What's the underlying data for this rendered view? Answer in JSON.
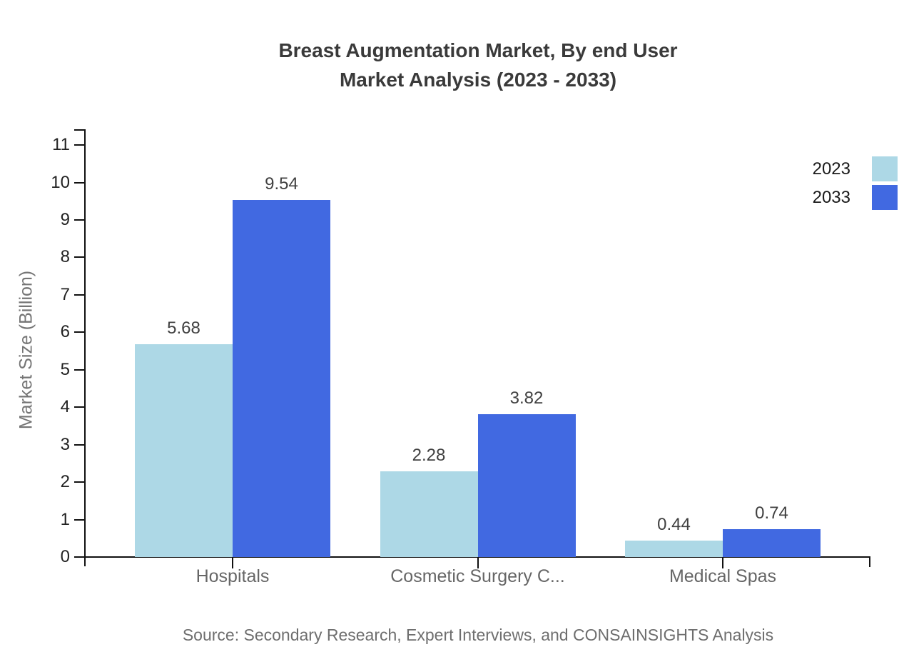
{
  "title": {
    "line1": "Breast Augmentation Market, By end User",
    "line2": "Market Analysis (2023 - 2033)"
  },
  "source_note": "Source: Secondary Research, Expert Interviews, and CONSAINSIGHTS Analysis",
  "chart_data": {
    "type": "bar",
    "title": "Breast Augmentation Market, By end User Market Analysis (2023 - 2033)",
    "categories": [
      "Hospitals",
      "Cosmetic Surgery C...",
      "Medical Spas"
    ],
    "series": [
      {
        "name": "2023",
        "color": "#ADD8E6",
        "values": [
          5.68,
          2.28,
          0.44
        ]
      },
      {
        "name": "2033",
        "color": "#4169E1",
        "values": [
          9.54,
          3.82,
          0.74
        ]
      }
    ],
    "xlabel": "",
    "ylabel": "Market Size (Billion)",
    "ylim": [
      0,
      11
    ],
    "yticks": [
      0,
      1,
      2,
      3,
      4,
      5,
      6,
      7,
      8,
      9,
      10,
      11
    ],
    "grid": false,
    "legend_position": "top-right",
    "value_labels": true
  },
  "colors": {
    "background": "#ffffff",
    "axis": "#111111",
    "title_text": "#3a3a3a",
    "value_label_text": "#404040",
    "category_label_text": "#666666",
    "tick_label_text": "#222222",
    "axis_title_text": "#757575",
    "source_text": "#6e6e6e",
    "series_2023": "#ADD8E6",
    "series_2033": "#4169E1"
  }
}
